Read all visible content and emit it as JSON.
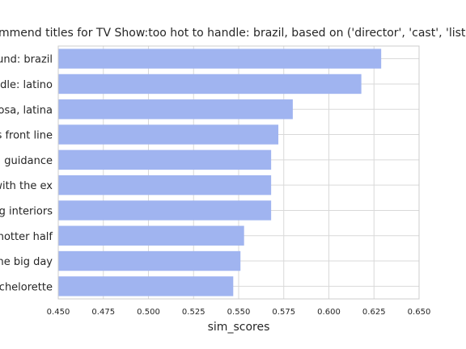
{
  "chart_data": {
    "type": "bar",
    "orientation": "horizontal",
    "title": "mmend titles for TV Show:too hot to handle: brazil, based on ('director', 'cast', 'listed_in', 'desc",
    "xlabel": "sim_scores",
    "ylabel": "",
    "xlim": [
      0.45,
      0.65
    ],
    "xticks": [
      "0.450",
      "0.475",
      "0.500",
      "0.525",
      "0.550",
      "0.575",
      "0.600",
      "0.625",
      "0.650"
    ],
    "grid": true,
    "bar_color": "#a0b4f0",
    "categories": [
      "ound: brazil",
      "ndle: latino",
      "nosa, latina",
      "s front line",
      "l guidance",
      "with the ex",
      "ng interiors",
      " hotter half",
      "the big day",
      "achelorette"
    ],
    "values": [
      0.629,
      0.618,
      0.58,
      0.572,
      0.568,
      0.568,
      0.568,
      0.553,
      0.551,
      0.547
    ]
  }
}
